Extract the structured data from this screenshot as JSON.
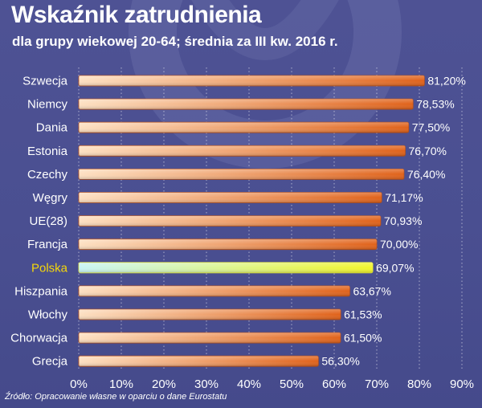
{
  "title": "Wskaźnik zatrudnienia",
  "subtitle": "dla grupy wiekowej 20-64; średnia za III kw. 2016 r.",
  "source": "Źródło: Opracowanie własne w oparciu o dane Eurostatu",
  "colors": {
    "background": "#4a4f91",
    "bar_light": "#fde0c2",
    "bar_dark": "#e0621a",
    "highlight_light": "#c8f5f5",
    "highlight_dark": "#f2f52a",
    "highlight_label": "#f5d70a",
    "text": "#ffffff"
  },
  "chart_data": {
    "type": "bar",
    "orientation": "horizontal",
    "categories": [
      "Szwecja",
      "Niemcy",
      "Dania",
      "Estonia",
      "Czechy",
      "Węgry",
      "UE(28)",
      "Francja",
      "Polska",
      "Hiszpania",
      "Włochy",
      "Chorwacja",
      "Grecja"
    ],
    "values": [
      81.2,
      78.53,
      77.5,
      76.7,
      76.4,
      71.17,
      70.93,
      70.0,
      69.07,
      63.67,
      61.53,
      61.5,
      56.3
    ],
    "value_labels": [
      "81,20%",
      "78,53%",
      "77,50%",
      "76,70%",
      "76,40%",
      "71,17%",
      "70,93%",
      "70,00%",
      "69,07%",
      "63,67%",
      "61,53%",
      "61,50%",
      "56,30%"
    ],
    "highlight": "Polska",
    "xlim": [
      0,
      90
    ],
    "xticks": [
      0,
      10,
      20,
      30,
      40,
      50,
      60,
      70,
      80,
      90
    ],
    "xtick_labels": [
      "0%",
      "10%",
      "20%",
      "30%",
      "40%",
      "50%",
      "60%",
      "70%",
      "80%",
      "90%"
    ],
    "grid": true,
    "legend": "none"
  }
}
